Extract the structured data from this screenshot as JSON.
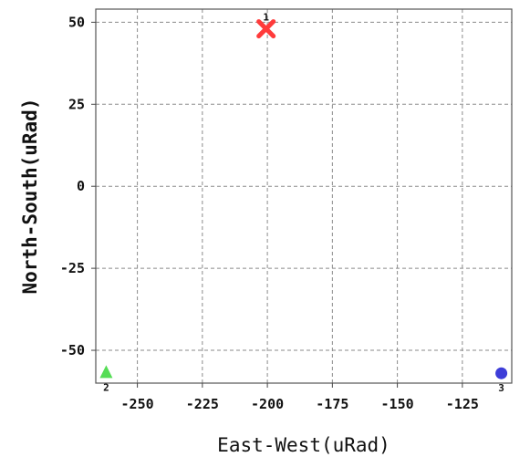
{
  "chart_data": {
    "type": "scatter",
    "title": "",
    "xlabel": "East-West(uRad)",
    "ylabel": "North-South(uRad)",
    "xlim": [
      -266,
      -106
    ],
    "ylim": [
      -60,
      54
    ],
    "grid": true,
    "x_ticks": [
      -250,
      -225,
      -200,
      -175,
      -150,
      -125
    ],
    "y_ticks": [
      50,
      25,
      0,
      -25,
      -50
    ],
    "x_tick_labels": [
      "-250",
      "-225",
      "-200",
      "-175",
      "-150",
      "-125"
    ],
    "y_tick_labels": [
      "50",
      "25",
      "0",
      "-25",
      "-50"
    ],
    "series": [
      {
        "marker": "x",
        "color": "#ff3b3b",
        "points": [
          {
            "x": -200.5,
            "y": 48
          }
        ],
        "point_label": "1"
      },
      {
        "marker": "triangle",
        "color": "#55dd55",
        "points": [
          {
            "x": -262,
            "y": -56.5
          }
        ],
        "point_label": "2"
      },
      {
        "marker": "circle",
        "color": "#3d3dd8",
        "points": [
          {
            "x": -110,
            "y": -57
          }
        ],
        "point_label": "3"
      }
    ]
  }
}
